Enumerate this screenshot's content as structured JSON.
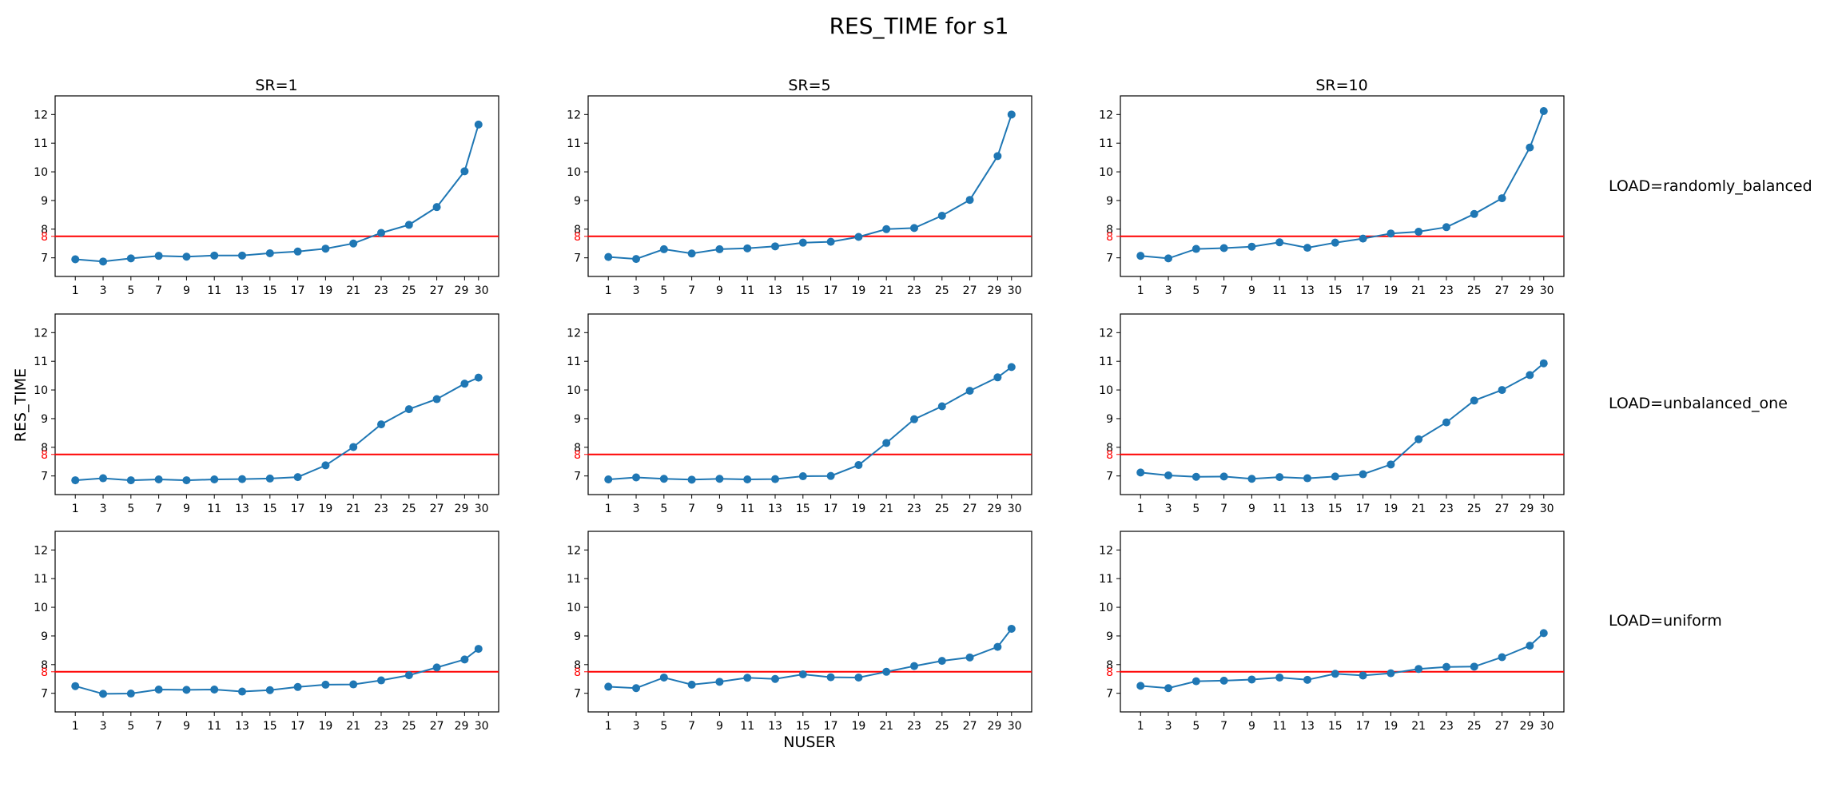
{
  "figure": {
    "title": "RES_TIME for s1",
    "xlabel": "NUSER",
    "ylabel": "RES_TIME",
    "col_titles": [
      "SR=1",
      "SR=5",
      "SR=10"
    ],
    "row_labels": [
      "LOAD=randomly_balanced",
      "LOAD=unbalanced_one",
      "LOAD=uniform"
    ]
  },
  "chart_data": [
    {
      "type": "line",
      "row": 0,
      "col": 0,
      "x": [
        1,
        3,
        5,
        7,
        9,
        11,
        13,
        15,
        17,
        19,
        21,
        23,
        25,
        27,
        29,
        30
      ],
      "series": [
        {
          "values": [
            6.95,
            6.87,
            6.98,
            7.07,
            7.04,
            7.08,
            7.08,
            7.16,
            7.22,
            7.32,
            7.5,
            7.87,
            8.15,
            8.77,
            10.02,
            11.65
          ]
        }
      ],
      "hline": {
        "y": 7.75,
        "color": "#ff0000"
      },
      "ylim": [
        6.35,
        12.65
      ],
      "yticks": [
        7,
        8,
        9,
        10,
        11,
        12
      ],
      "xticks": [
        1,
        3,
        5,
        7,
        9,
        11,
        13,
        15,
        17,
        19,
        21,
        23,
        25,
        27,
        29,
        30
      ],
      "extra_ytick": 8
    },
    {
      "type": "line",
      "row": 0,
      "col": 1,
      "x": [
        1,
        3,
        5,
        7,
        9,
        11,
        13,
        15,
        17,
        19,
        21,
        23,
        25,
        27,
        29,
        30
      ],
      "series": [
        {
          "values": [
            7.03,
            6.96,
            7.3,
            7.15,
            7.3,
            7.33,
            7.4,
            7.53,
            7.56,
            7.73,
            8.0,
            8.04,
            8.47,
            9.02,
            10.55,
            12.0
          ]
        }
      ],
      "hline": {
        "y": 7.75,
        "color": "#ff0000"
      },
      "ylim": [
        6.35,
        12.65
      ],
      "yticks": [
        7,
        8,
        9,
        10,
        11,
        12
      ],
      "xticks": [
        1,
        3,
        5,
        7,
        9,
        11,
        13,
        15,
        17,
        19,
        21,
        23,
        25,
        27,
        29,
        30
      ],
      "extra_ytick": 8
    },
    {
      "type": "line",
      "row": 0,
      "col": 2,
      "x": [
        1,
        3,
        5,
        7,
        9,
        11,
        13,
        15,
        17,
        19,
        21,
        23,
        25,
        27,
        29,
        30
      ],
      "series": [
        {
          "values": [
            7.07,
            6.98,
            7.31,
            7.34,
            7.39,
            7.54,
            7.35,
            7.53,
            7.67,
            7.85,
            7.91,
            8.07,
            8.53,
            9.08,
            10.85,
            12.12
          ]
        }
      ],
      "hline": {
        "y": 7.75,
        "color": "#ff0000"
      },
      "ylim": [
        6.35,
        12.65
      ],
      "yticks": [
        7,
        8,
        9,
        10,
        11,
        12
      ],
      "xticks": [
        1,
        3,
        5,
        7,
        9,
        11,
        13,
        15,
        17,
        19,
        21,
        23,
        25,
        27,
        29,
        30
      ],
      "extra_ytick": 8
    },
    {
      "type": "line",
      "row": 1,
      "col": 0,
      "x": [
        1,
        3,
        5,
        7,
        9,
        11,
        13,
        15,
        17,
        19,
        21,
        23,
        25,
        27,
        29,
        30
      ],
      "series": [
        {
          "values": [
            6.85,
            6.92,
            6.85,
            6.88,
            6.85,
            6.88,
            6.89,
            6.91,
            6.96,
            7.37,
            8.01,
            8.8,
            9.33,
            9.68,
            10.22,
            10.43
          ]
        }
      ],
      "hline": {
        "y": 7.75,
        "color": "#ff0000"
      },
      "ylim": [
        6.35,
        12.65
      ],
      "yticks": [
        7,
        8,
        9,
        10,
        11,
        12
      ],
      "xticks": [
        1,
        3,
        5,
        7,
        9,
        11,
        13,
        15,
        17,
        19,
        21,
        23,
        25,
        27,
        29,
        30
      ],
      "extra_ytick": 8
    },
    {
      "type": "line",
      "row": 1,
      "col": 1,
      "x": [
        1,
        3,
        5,
        7,
        9,
        11,
        13,
        15,
        17,
        19,
        21,
        23,
        25,
        27,
        29,
        30
      ],
      "series": [
        {
          "values": [
            6.88,
            6.95,
            6.9,
            6.87,
            6.9,
            6.88,
            6.89,
            6.99,
            7.0,
            7.38,
            8.15,
            8.98,
            9.43,
            9.97,
            10.44,
            10.8
          ]
        }
      ],
      "hline": {
        "y": 7.75,
        "color": "#ff0000"
      },
      "ylim": [
        6.35,
        12.65
      ],
      "yticks": [
        7,
        8,
        9,
        10,
        11,
        12
      ],
      "xticks": [
        1,
        3,
        5,
        7,
        9,
        11,
        13,
        15,
        17,
        19,
        21,
        23,
        25,
        27,
        29,
        30
      ],
      "extra_ytick": 8
    },
    {
      "type": "line",
      "row": 1,
      "col": 2,
      "x": [
        1,
        3,
        5,
        7,
        9,
        11,
        13,
        15,
        17,
        19,
        21,
        23,
        25,
        27,
        29,
        30
      ],
      "series": [
        {
          "values": [
            7.12,
            7.02,
            6.97,
            6.98,
            6.9,
            6.96,
            6.92,
            6.98,
            7.06,
            7.4,
            8.28,
            8.87,
            9.63,
            10.0,
            10.52,
            10.93
          ]
        }
      ],
      "hline": {
        "y": 7.75,
        "color": "#ff0000"
      },
      "ylim": [
        6.35,
        12.65
      ],
      "yticks": [
        7,
        8,
        9,
        10,
        11,
        12
      ],
      "xticks": [
        1,
        3,
        5,
        7,
        9,
        11,
        13,
        15,
        17,
        19,
        21,
        23,
        25,
        27,
        29,
        30
      ],
      "extra_ytick": 8
    },
    {
      "type": "line",
      "row": 2,
      "col": 0,
      "x": [
        1,
        3,
        5,
        7,
        9,
        11,
        13,
        15,
        17,
        19,
        21,
        23,
        25,
        27,
        29,
        30
      ],
      "series": [
        {
          "values": [
            7.25,
            6.98,
            6.99,
            7.13,
            7.12,
            7.13,
            7.06,
            7.11,
            7.22,
            7.3,
            7.31,
            7.45,
            7.63,
            7.9,
            8.18,
            8.55
          ]
        }
      ],
      "hline": {
        "y": 7.75,
        "color": "#ff0000"
      },
      "ylim": [
        6.35,
        12.65
      ],
      "yticks": [
        7,
        8,
        9,
        10,
        11,
        12
      ],
      "xticks": [
        1,
        3,
        5,
        7,
        9,
        11,
        13,
        15,
        17,
        19,
        21,
        23,
        25,
        27,
        29,
        30
      ],
      "extra_ytick": 8
    },
    {
      "type": "line",
      "row": 2,
      "col": 1,
      "x": [
        1,
        3,
        5,
        7,
        9,
        11,
        13,
        15,
        17,
        19,
        21,
        23,
        25,
        27,
        29,
        30
      ],
      "series": [
        {
          "values": [
            7.23,
            7.18,
            7.55,
            7.3,
            7.4,
            7.54,
            7.5,
            7.66,
            7.56,
            7.55,
            7.75,
            7.95,
            8.13,
            8.25,
            8.62,
            9.25
          ]
        }
      ],
      "hline": {
        "y": 7.75,
        "color": "#ff0000"
      },
      "ylim": [
        6.35,
        12.65
      ],
      "yticks": [
        7,
        8,
        9,
        10,
        11,
        12
      ],
      "xticks": [
        1,
        3,
        5,
        7,
        9,
        11,
        13,
        15,
        17,
        19,
        21,
        23,
        25,
        27,
        29,
        30
      ],
      "extra_ytick": 8
    },
    {
      "type": "line",
      "row": 2,
      "col": 2,
      "x": [
        1,
        3,
        5,
        7,
        9,
        11,
        13,
        15,
        17,
        19,
        21,
        23,
        25,
        27,
        29,
        30
      ],
      "series": [
        {
          "values": [
            7.26,
            7.18,
            7.42,
            7.44,
            7.48,
            7.55,
            7.47,
            7.68,
            7.62,
            7.7,
            7.85,
            7.92,
            7.93,
            8.26,
            8.66,
            9.1
          ]
        }
      ],
      "hline": {
        "y": 7.75,
        "color": "#ff0000"
      },
      "ylim": [
        6.35,
        12.65
      ],
      "yticks": [
        7,
        8,
        9,
        10,
        11,
        12
      ],
      "xticks": [
        1,
        3,
        5,
        7,
        9,
        11,
        13,
        15,
        17,
        19,
        21,
        23,
        25,
        27,
        29,
        30
      ],
      "extra_ytick": 8
    }
  ],
  "colors": {
    "series": "#1f77b4",
    "threshold": "#ff0000",
    "axes": "#000000"
  }
}
